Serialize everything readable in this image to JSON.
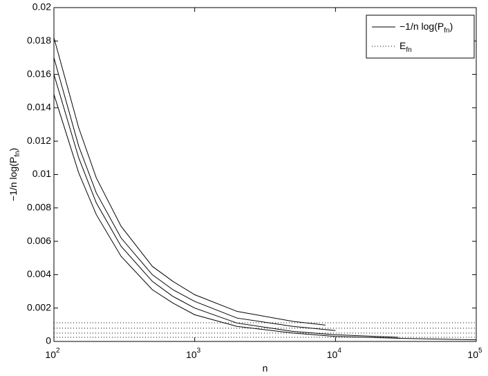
{
  "chart_data": {
    "type": "line",
    "x_label": "n",
    "y_label": [
      "−1/n log(P",
      "fn",
      ")"
    ],
    "log_x": true,
    "grid": false,
    "legend_corner": "upper right",
    "xlim": [
      100,
      100000
    ],
    "xticks": [
      {
        "value": 100,
        "label": "10",
        "exp": "2"
      },
      {
        "value": 1000,
        "label": "10",
        "exp": "3"
      },
      {
        "value": 10000,
        "label": "10",
        "exp": "4"
      },
      {
        "value": 100000,
        "label": "10",
        "exp": "5"
      }
    ],
    "ylim": [
      0,
      0.02
    ],
    "yticks": [
      0,
      0.002,
      0.004,
      0.006,
      0.008,
      0.01,
      0.012,
      0.014,
      0.016,
      0.018,
      0.02
    ],
    "legend": [
      {
        "label": [
          "−1/n log(P",
          "fn",
          ")"
        ],
        "style": "solid"
      },
      {
        "label": [
          "E",
          "fn"
        ],
        "style": "dotted"
      }
    ],
    "series": [
      {
        "style": "solid",
        "color": "#000000",
        "x": [
          100,
          150,
          200,
          300,
          500,
          700,
          1000,
          2000,
          5000,
          8500
        ],
        "values": [
          0.0182,
          0.0128,
          0.0098,
          0.0069,
          0.0045,
          0.0036,
          0.0028,
          0.0018,
          0.0012,
          0.00098
        ]
      },
      {
        "style": "solid",
        "color": "#000000",
        "x": [
          100,
          150,
          200,
          300,
          500,
          700,
          1000,
          2000,
          5000,
          10000
        ],
        "values": [
          0.017,
          0.0117,
          0.0089,
          0.0062,
          0.004,
          0.0031,
          0.0024,
          0.0014,
          0.0009,
          0.00065
        ]
      },
      {
        "style": "solid",
        "color": "#000000",
        "x": [
          100,
          150,
          200,
          300,
          500,
          700,
          1000,
          2000,
          5000,
          10000,
          28000
        ],
        "values": [
          0.016,
          0.011,
          0.0083,
          0.0057,
          0.0036,
          0.0027,
          0.002,
          0.0011,
          0.0006,
          0.0004,
          0.00025
        ]
      },
      {
        "style": "solid",
        "color": "#000000",
        "x": [
          100,
          150,
          200,
          300,
          500,
          700,
          1000,
          2000,
          5000,
          10000,
          30000,
          100000
        ],
        "values": [
          0.0148,
          0.0101,
          0.0076,
          0.0051,
          0.0031,
          0.0023,
          0.0016,
          0.0009,
          0.0005,
          0.0003,
          0.00018,
          0.0001
        ]
      },
      {
        "style": "dotted",
        "color": "#000000",
        "x": [
          100,
          100000
        ],
        "values": [
          0.00112,
          0.00112
        ]
      },
      {
        "style": "dotted",
        "color": "#000000",
        "x": [
          100,
          100000
        ],
        "values": [
          0.00079,
          0.00079
        ]
      },
      {
        "style": "dotted",
        "color": "#000000",
        "x": [
          100,
          100000
        ],
        "values": [
          0.0005,
          0.0005
        ]
      },
      {
        "style": "dotted",
        "color": "#000000",
        "x": [
          100,
          100000
        ],
        "values": [
          0.00025,
          0.00025
        ]
      }
    ]
  }
}
